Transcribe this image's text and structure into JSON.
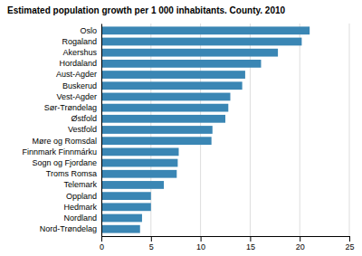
{
  "chart_data": {
    "type": "bar",
    "orientation": "horizontal",
    "title": "Estimated population growth per 1 000 inhabitants. County. 2010",
    "categories": [
      "Nord-Trøndelag",
      "Nordland",
      "Hedmark",
      "Oppland",
      "Telemark",
      "Troms Romsa",
      "Sogn og Fjordane",
      "Finnmark Finnmárku",
      "Møre og Romsdal",
      "Vestfold",
      "Østfold",
      "Sør-Trøndelag",
      "Vest-Agder",
      "Buskerud",
      "Aust-Agder",
      "Hordaland",
      "Akershus",
      "Rogaland",
      "Oslo"
    ],
    "values": [
      3.9,
      4.1,
      5.0,
      5.0,
      6.3,
      7.6,
      7.7,
      7.8,
      11.1,
      11.2,
      12.5,
      12.8,
      13.0,
      14.2,
      14.5,
      16.1,
      17.8,
      20.2,
      21.0
    ],
    "color": "#3a86b4",
    "xlim": [
      0,
      25
    ],
    "xticks": [
      0,
      5,
      10,
      15,
      20,
      25
    ],
    "grid": true
  }
}
